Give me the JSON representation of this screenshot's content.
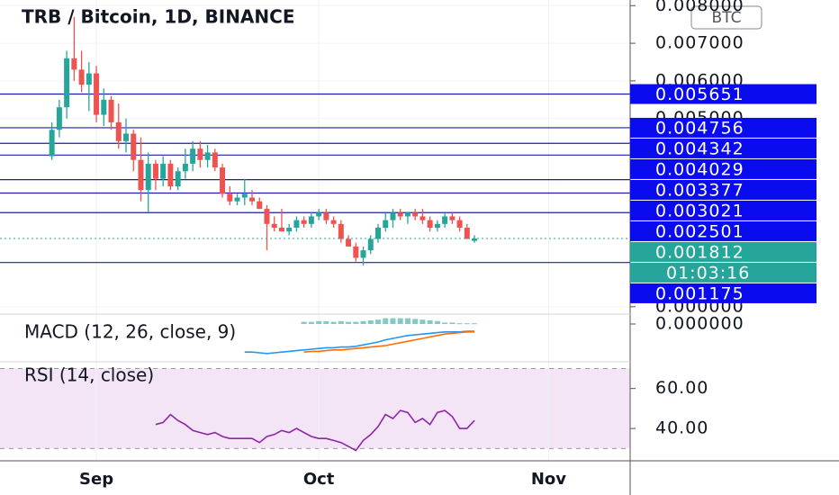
{
  "chart_data": [
    {
      "type": "candlestick",
      "title": "TRB / Bitcoin, 1D, BINANCE",
      "currency": "BTC",
      "open": [
        0.004,
        0.0047,
        0.0053,
        0.0066,
        0.0063,
        0.0059,
        0.0062,
        0.0051,
        0.0055,
        0.0049,
        0.0044,
        0.0046,
        0.0039,
        0.0031,
        0.0038,
        0.0034,
        0.0038,
        0.0032,
        0.0036,
        0.0038,
        0.0042,
        0.0039,
        0.0041,
        0.0037,
        0.003,
        0.0028,
        0.0029,
        0.0029,
        0.0028,
        0.0026,
        0.0022,
        0.0021,
        0.002,
        0.0021,
        0.0023,
        0.0022,
        0.0024,
        0.0025,
        0.0023,
        0.0022,
        0.0018,
        0.0016,
        0.0013,
        0.0015,
        0.0018,
        0.0021,
        0.0023,
        0.0025,
        0.0024,
        0.0025,
        0.0024,
        0.0023,
        0.0021,
        0.0022,
        0.0024,
        0.0023,
        0.0021,
        0.00175
      ],
      "high": [
        0.0049,
        0.0055,
        0.0068,
        0.0077,
        0.0068,
        0.0065,
        0.0064,
        0.0058,
        0.0056,
        0.0054,
        0.005,
        0.0047,
        0.0045,
        0.0041,
        0.0039,
        0.004,
        0.0039,
        0.0037,
        0.0042,
        0.0044,
        0.0044,
        0.0043,
        0.0042,
        0.0038,
        0.0032,
        0.003,
        0.0034,
        0.0031,
        0.0029,
        0.0027,
        0.0024,
        0.0026,
        0.0022,
        0.0024,
        0.0024,
        0.0025,
        0.0026,
        0.0026,
        0.0024,
        0.0023,
        0.0019,
        0.0017,
        0.0016,
        0.0019,
        0.0022,
        0.0025,
        0.0026,
        0.0026,
        0.0025,
        0.0026,
        0.0026,
        0.0024,
        0.0023,
        0.0025,
        0.0025,
        0.0024,
        0.0022,
        0.0019
      ],
      "low": [
        0.0039,
        0.0045,
        0.005,
        0.006,
        0.0057,
        0.0052,
        0.0049,
        0.0048,
        0.0047,
        0.0042,
        0.0041,
        0.0036,
        0.0028,
        0.0025,
        0.0031,
        0.0032,
        0.0031,
        0.0031,
        0.0034,
        0.0036,
        0.0037,
        0.0037,
        0.0036,
        0.0029,
        0.0027,
        0.0027,
        0.0027,
        0.0027,
        0.0026,
        0.0015,
        0.002,
        0.002,
        0.0019,
        0.002,
        0.0021,
        0.0021,
        0.0023,
        0.0022,
        0.0021,
        0.0017,
        0.0016,
        0.0012,
        0.0011,
        0.0014,
        0.0017,
        0.002,
        0.0021,
        0.0023,
        0.0022,
        0.0023,
        0.0022,
        0.002,
        0.002,
        0.0021,
        0.0022,
        0.002,
        0.0018,
        0.0017
      ],
      "close": [
        0.0047,
        0.0053,
        0.0066,
        0.0063,
        0.0059,
        0.0062,
        0.0051,
        0.0055,
        0.0049,
        0.0044,
        0.0046,
        0.0039,
        0.0031,
        0.0038,
        0.0034,
        0.0038,
        0.0032,
        0.0036,
        0.0038,
        0.0042,
        0.0039,
        0.0041,
        0.0037,
        0.003,
        0.0028,
        0.0029,
        0.003,
        0.0028,
        0.0026,
        0.0022,
        0.0021,
        0.002,
        0.0021,
        0.0023,
        0.0022,
        0.0024,
        0.0025,
        0.0023,
        0.0022,
        0.0018,
        0.0016,
        0.0013,
        0.0015,
        0.0018,
        0.0021,
        0.0023,
        0.0025,
        0.0024,
        0.0025,
        0.0024,
        0.0023,
        0.0021,
        0.0022,
        0.0024,
        0.0023,
        0.0021,
        0.0018,
        0.001812
      ],
      "up_color": "#26a69a",
      "down_color": "#ef5350",
      "xlim": [
        -7,
        78
      ],
      "xticks": [
        {
          "value": 6,
          "label": "Sep"
        },
        {
          "value": 36,
          "label": "Oct"
        },
        {
          "value": 67,
          "label": "Nov"
        }
      ],
      "ylim": [
        -0.0001,
        0.00815
      ],
      "yticks": [
        {
          "value": 0,
          "label": "0.000000"
        },
        {
          "value": 0.005,
          "label": "0.005000"
        },
        {
          "value": 0.006,
          "label": "0.006000"
        },
        {
          "value": 0.007,
          "label": "0.007000"
        },
        {
          "value": 0.008,
          "label": "0.008000"
        }
      ],
      "grid": true,
      "levels": {
        "values": [
          0.005651,
          0.004756,
          0.004342,
          0.004029,
          0.003377,
          0.003021,
          0.002501,
          0.001175
        ],
        "value_labels": [
          "0.005651",
          "0.004756",
          "0.004342",
          "0.004029",
          "0.003377",
          "0.003021",
          "0.002501",
          "0.001175"
        ],
        "color": "#1c1cb0",
        "label_color": "#0b0bef"
      },
      "last_price": 0.001812,
      "last_price_label": "0.001812",
      "countdown": "01:03:16"
    },
    {
      "type": "line",
      "title": "MACD (12, 26, close, 9)",
      "ylim": [
        -0.0005,
        0.0001
      ],
      "yticks": [
        {
          "value": 0,
          "label": "0.000000"
        }
      ],
      "series": [
        {
          "kind": "bar",
          "color": "#80cbc4",
          "values": [
            null,
            null,
            null,
            null,
            null,
            null,
            null,
            null,
            null,
            null,
            null,
            null,
            null,
            null,
            null,
            null,
            null,
            null,
            null,
            null,
            null,
            null,
            null,
            null,
            null,
            null,
            null,
            null,
            null,
            null,
            null,
            null,
            null,
            null,
            3e-05,
            3e-05,
            4e-05,
            4e-05,
            3e-05,
            4e-05,
            3e-05,
            3e-05,
            4e-05,
            5e-05,
            6e-05,
            8e-05,
            8e-05,
            8e-05,
            8e-05,
            7e-05,
            6e-05,
            5e-05,
            4e-05,
            2e-05,
            2e-05,
            1e-05,
            1e-05,
            1e-05
          ]
        },
        {
          "color": "#2196f3",
          "values": [
            null,
            null,
            null,
            null,
            null,
            null,
            null,
            null,
            null,
            null,
            null,
            null,
            null,
            null,
            null,
            null,
            null,
            null,
            null,
            null,
            null,
            null,
            null,
            null,
            null,
            null,
            -0.00039,
            -0.00039,
            -0.0004,
            -0.00041,
            -0.0004,
            -0.00039,
            -0.00038,
            -0.00037,
            -0.00036,
            -0.00035,
            -0.00034,
            -0.00033,
            -0.00033,
            -0.00032,
            -0.00032,
            -0.00031,
            -0.00029,
            -0.00027,
            -0.00025,
            -0.00022,
            -0.0002,
            -0.00018,
            -0.00016,
            -0.00015,
            -0.00014,
            -0.00013,
            -0.00012,
            -0.00011,
            -0.00011,
            -0.00011,
            -0.0001,
            -0.0001
          ]
        },
        {
          "color": "#ff6d00",
          "values": [
            null,
            null,
            null,
            null,
            null,
            null,
            null,
            null,
            null,
            null,
            null,
            null,
            null,
            null,
            null,
            null,
            null,
            null,
            null,
            null,
            null,
            null,
            null,
            null,
            null,
            null,
            null,
            null,
            null,
            null,
            null,
            null,
            null,
            null,
            -0.00039,
            -0.00038,
            -0.00038,
            -0.00037,
            -0.00036,
            -0.00036,
            -0.00035,
            -0.00034,
            -0.00033,
            -0.00032,
            -0.00031,
            -0.0003,
            -0.00028,
            -0.00026,
            -0.00024,
            -0.00022,
            -0.0002,
            -0.00018,
            -0.00016,
            -0.00014,
            -0.00013,
            -0.00012,
            -0.00011,
            -0.00011
          ]
        }
      ]
    },
    {
      "type": "line",
      "title": "RSI (14, close)",
      "ylim": [
        27,
        72
      ],
      "yticks": [
        {
          "value": 40,
          "label": "40.00"
        },
        {
          "value": 60,
          "label": "60.00"
        }
      ],
      "band": [
        30,
        70
      ],
      "band_color": "#f3e5f5",
      "series": [
        {
          "color": "#8e24aa",
          "values": [
            null,
            null,
            null,
            null,
            null,
            null,
            null,
            null,
            null,
            null,
            null,
            null,
            null,
            null,
            42,
            43,
            47,
            44,
            42,
            39,
            38,
            37,
            38,
            36,
            35,
            35,
            35,
            35,
            33,
            36,
            37,
            39,
            38,
            40,
            38,
            36,
            35,
            35,
            34,
            33,
            31,
            29,
            34,
            37,
            41,
            47,
            45,
            49,
            48,
            43,
            45,
            42,
            48,
            49,
            46,
            40,
            40,
            44
          ]
        }
      ]
    }
  ]
}
